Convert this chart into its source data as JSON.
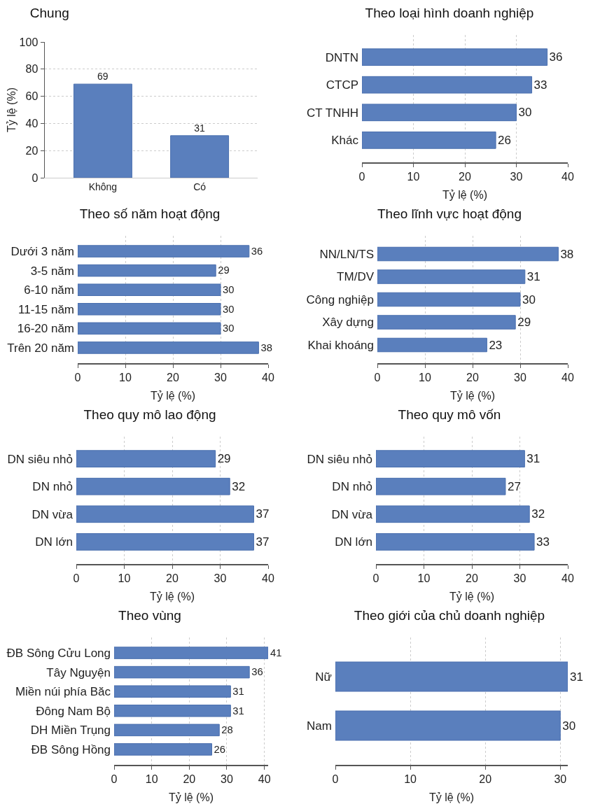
{
  "chart_data": [
    {
      "type": "bar",
      "title": "Chung",
      "ylabel": "Tỷ lệ (%)",
      "categories": [
        "Không",
        "Có"
      ],
      "values": [
        69,
        31
      ],
      "color": "#5a7fbd",
      "ylim": [
        0,
        100
      ],
      "yticks": [
        0,
        20,
        40,
        60,
        80,
        100
      ],
      "grid": "y",
      "data_labels": true
    },
    {
      "type": "bar",
      "orientation": "horizontal",
      "title": "Theo loại hình doanh nghiệp",
      "xlabel": "Tỷ lệ (%)",
      "categories": [
        "DNTN",
        "CTCP",
        "CT TNHH",
        "Khác"
      ],
      "values": [
        36,
        33,
        30,
        26
      ],
      "color": "#5a7fbd",
      "xlim": [
        0,
        40
      ],
      "xticks": [
        0,
        10,
        20,
        30,
        40
      ],
      "grid": "x",
      "data_labels": true
    },
    {
      "type": "bar",
      "orientation": "horizontal",
      "title": "Theo số năm hoạt động",
      "xlabel": "Tỷ lệ (%)",
      "categories": [
        "Dưới 3 năm",
        "3-5 năm",
        "6-10 năm",
        "11-15 năm",
        "16-20 năm",
        "Trên 20 năm"
      ],
      "values": [
        36,
        29,
        30,
        30,
        30,
        38
      ],
      "color": "#5a7fbd",
      "xlim": [
        0,
        40
      ],
      "xticks": [
        0,
        10,
        20,
        30,
        40
      ],
      "grid": "x",
      "data_labels": true
    },
    {
      "type": "bar",
      "orientation": "horizontal",
      "title": "Theo lĩnh vực hoạt động",
      "xlabel": "Tỷ lệ (%)",
      "categories": [
        "NN/LN/TS",
        "TM/DV",
        "Công nghiệp",
        "Xây dựng",
        "Khai khoáng"
      ],
      "values": [
        38,
        31,
        30,
        29,
        23
      ],
      "color": "#5a7fbd",
      "xlim": [
        0,
        40
      ],
      "xticks": [
        0,
        10,
        20,
        30,
        40
      ],
      "grid": "x",
      "data_labels": true
    },
    {
      "type": "bar",
      "orientation": "horizontal",
      "title": "Theo quy mô lao động",
      "xlabel": "Tỷ lệ (%)",
      "categories": [
        "DN siêu nhỏ",
        "DN nhỏ",
        "DN vừa",
        "DN lớn"
      ],
      "values": [
        29,
        32,
        37,
        37
      ],
      "color": "#5a7fbd",
      "xlim": [
        0,
        40
      ],
      "xticks": [
        0,
        10,
        20,
        30,
        40
      ],
      "grid": "x",
      "data_labels": true
    },
    {
      "type": "bar",
      "orientation": "horizontal",
      "title": "Theo quy mô vốn",
      "xlabel": "Tỷ lệ (%)",
      "categories": [
        "DN siêu nhỏ",
        "DN nhỏ",
        "DN vừa",
        "DN lớn"
      ],
      "values": [
        31,
        27,
        32,
        33
      ],
      "color": "#5a7fbd",
      "xlim": [
        0,
        40
      ],
      "xticks": [
        0,
        10,
        20,
        30,
        40
      ],
      "grid": "x",
      "data_labels": true
    },
    {
      "type": "bar",
      "orientation": "horizontal",
      "title": "Theo vùng",
      "xlabel": "Tỷ lệ (%)",
      "categories": [
        "ĐB Sông Cửu Long",
        "Tây Nguyện",
        "Miền núi phía Băc",
        "Đông Nam Bộ",
        "DH Miền Trụng",
        "ĐB Sông Hồng"
      ],
      "values": [
        41,
        36,
        31,
        31,
        28,
        26
      ],
      "color": "#5a7fbd",
      "xlim": [
        0,
        41
      ],
      "xticks": [
        0,
        10,
        20,
        30,
        40
      ],
      "grid": "x",
      "data_labels": true
    },
    {
      "type": "bar",
      "orientation": "horizontal",
      "title": "Theo giới của chủ doanh nghiệp",
      "xlabel": "Tỷ lệ (%)",
      "categories": [
        "Nữ",
        "Nam"
      ],
      "values": [
        31,
        30
      ],
      "color": "#5a7fbd",
      "xlim": [
        0,
        31
      ],
      "xticks": [
        0,
        10,
        20,
        30
      ],
      "grid": "x",
      "data_labels": true
    }
  ]
}
